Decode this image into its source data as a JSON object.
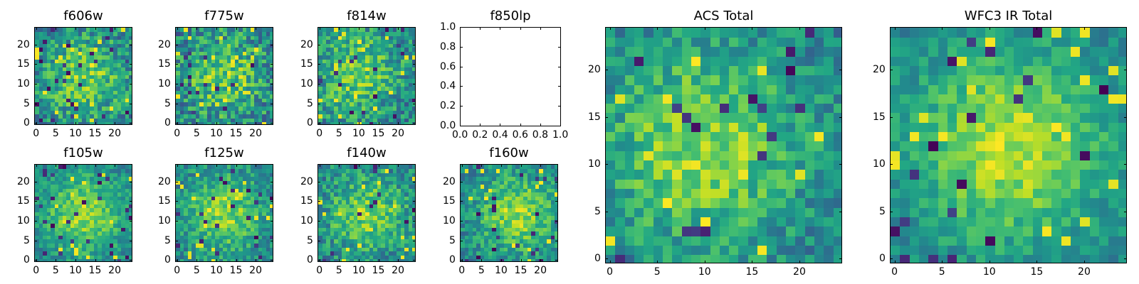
{
  "figure": {
    "title": ""
  },
  "chart_data": [
    {
      "id": "f606w",
      "type": "heatmap",
      "title": "f606w",
      "grid_size": 25,
      "x": [
        0,
        24
      ],
      "y": [
        0,
        24
      ],
      "xticks": [
        "0",
        "5",
        "10",
        "15",
        "20"
      ],
      "yticks": [
        "0",
        "5",
        "10",
        "15",
        "20"
      ],
      "colormap": "viridis",
      "center": [
        12,
        12
      ],
      "peak": 0.78,
      "noise": 0.45,
      "seed": 11
    },
    {
      "id": "f775w",
      "type": "heatmap",
      "title": "f775w",
      "grid_size": 25,
      "x": [
        0,
        24
      ],
      "y": [
        0,
        24
      ],
      "xticks": [
        "0",
        "5",
        "10",
        "15",
        "20"
      ],
      "yticks": [
        "0",
        "5",
        "10",
        "15",
        "20"
      ],
      "colormap": "viridis",
      "center": [
        12,
        12
      ],
      "peak": 0.78,
      "noise": 0.5,
      "seed": 23
    },
    {
      "id": "f814w",
      "type": "heatmap",
      "title": "f814w",
      "grid_size": 25,
      "x": [
        0,
        24
      ],
      "y": [
        0,
        24
      ],
      "xticks": [
        "0",
        "5",
        "10",
        "15",
        "20"
      ],
      "yticks": [
        "0",
        "5",
        "10",
        "15",
        "20"
      ],
      "colormap": "viridis",
      "center": [
        10,
        13
      ],
      "peak": 0.8,
      "noise": 0.45,
      "seed": 37
    },
    {
      "id": "f850lp",
      "type": "empty",
      "title": "f850lp",
      "xticks": [
        "0.0",
        "0.2",
        "0.4",
        "0.6",
        "0.8",
        "1.0"
      ],
      "yticks": [
        "0.0",
        "0.2",
        "0.4",
        "0.6",
        "0.8",
        "1.0"
      ],
      "xlim": [
        0,
        1
      ],
      "ylim": [
        0,
        1
      ]
    },
    {
      "id": "f105w",
      "type": "heatmap",
      "title": "f105w",
      "grid_size": 25,
      "x": [
        0,
        24
      ],
      "y": [
        0,
        24
      ],
      "xticks": [
        "0",
        "5",
        "10",
        "15",
        "20"
      ],
      "yticks": [
        "0",
        "5",
        "10",
        "15",
        "20"
      ],
      "colormap": "viridis",
      "center": [
        12,
        12
      ],
      "peak": 0.85,
      "noise": 0.3,
      "seed": 51
    },
    {
      "id": "f125w",
      "type": "heatmap",
      "title": "f125w",
      "grid_size": 25,
      "x": [
        0,
        24
      ],
      "y": [
        0,
        24
      ],
      "xticks": [
        "0",
        "5",
        "10",
        "15",
        "20"
      ],
      "yticks": [
        "0",
        "5",
        "10",
        "15",
        "20"
      ],
      "colormap": "viridis",
      "center": [
        12,
        12
      ],
      "peak": 0.82,
      "noise": 0.35,
      "seed": 63
    },
    {
      "id": "f140w",
      "type": "heatmap",
      "title": "f140w",
      "grid_size": 25,
      "x": [
        0,
        24
      ],
      "y": [
        0,
        24
      ],
      "xticks": [
        "0",
        "5",
        "10",
        "15",
        "20"
      ],
      "yticks": [
        "0",
        "5",
        "10",
        "15",
        "20"
      ],
      "colormap": "viridis",
      "center": [
        12,
        12
      ],
      "peak": 0.8,
      "noise": 0.4,
      "seed": 79
    },
    {
      "id": "f160w",
      "type": "heatmap",
      "title": "f160w",
      "grid_size": 25,
      "x": [
        0,
        24
      ],
      "y": [
        0,
        24
      ],
      "xticks": [
        "0",
        "5",
        "10",
        "15",
        "20"
      ],
      "yticks": [
        "0",
        "5",
        "10",
        "15",
        "20"
      ],
      "colormap": "viridis",
      "center": [
        14,
        12
      ],
      "peak": 0.85,
      "noise": 0.35,
      "seed": 91
    },
    {
      "id": "acs-total",
      "type": "heatmap",
      "title": "ACS Total",
      "grid_size": 25,
      "x": [
        0,
        24
      ],
      "y": [
        0,
        24
      ],
      "xticks": [
        "0",
        "5",
        "10",
        "15",
        "20"
      ],
      "yticks": [
        "0",
        "5",
        "10",
        "15",
        "20"
      ],
      "colormap": "viridis",
      "center": [
        10,
        12
      ],
      "peak": 0.85,
      "noise": 0.35,
      "seed": 103
    },
    {
      "id": "wfc3-ir-total",
      "type": "heatmap",
      "title": "WFC3 IR Total",
      "grid_size": 25,
      "x": [
        0,
        24
      ],
      "y": [
        0,
        24
      ],
      "xticks": [
        "0",
        "5",
        "10",
        "15",
        "20"
      ],
      "yticks": [
        "0",
        "5",
        "10",
        "15",
        "20"
      ],
      "colormap": "viridis",
      "center": [
        12,
        12
      ],
      "peak": 0.9,
      "noise": 0.25,
      "seed": 127
    }
  ]
}
